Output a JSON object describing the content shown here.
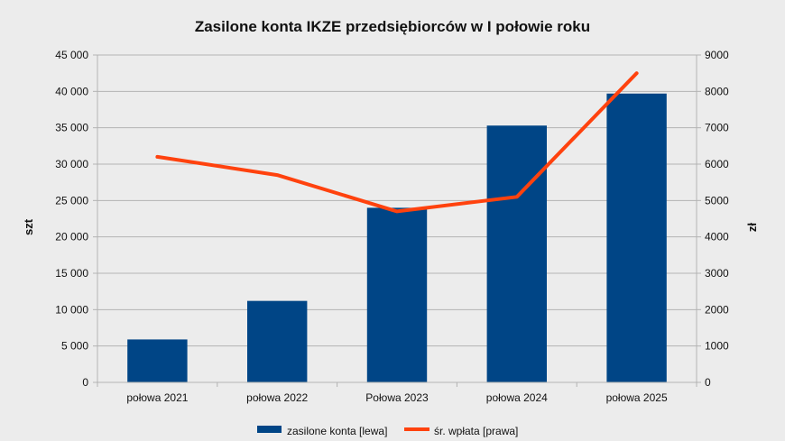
{
  "chart_data": {
    "type": "bar",
    "title": "Zasilone konta IKZE przedsiębiorców w I połowie roku",
    "categories": [
      "połowa 2021",
      "połowa 2022",
      "Połowa 2023",
      "połowa 2024",
      "połowa 2025"
    ],
    "series": [
      {
        "name": "zasilone konta [lewa]",
        "type": "bar",
        "axis": "left",
        "color": "#004586",
        "values": [
          5900,
          11200,
          24000,
          35300,
          39700
        ]
      },
      {
        "name": "śr. wpłata [prawa]",
        "type": "line",
        "axis": "right",
        "color": "#ff420e",
        "values": [
          6200,
          5700,
          4700,
          5100,
          8500
        ]
      }
    ],
    "y_left": {
      "label": "szt",
      "range": [
        0,
        45000
      ],
      "ticks": [
        0,
        5000,
        10000,
        15000,
        20000,
        25000,
        30000,
        35000,
        40000,
        45000
      ],
      "tick_labels": [
        "0",
        "5 000",
        "10 000",
        "15 000",
        "20 000",
        "25 000",
        "30 000",
        "35 000",
        "40 000",
        "45 000"
      ]
    },
    "y_right": {
      "label": "zł",
      "range": [
        0,
        9000
      ],
      "ticks": [
        0,
        1000,
        2000,
        3000,
        4000,
        5000,
        6000,
        7000,
        8000,
        9000
      ],
      "tick_labels": [
        "0",
        "1000",
        "2000",
        "3000",
        "4000",
        "5000",
        "6000",
        "7000",
        "8000",
        "9000"
      ]
    },
    "grid": true,
    "legend_position": "bottom"
  }
}
